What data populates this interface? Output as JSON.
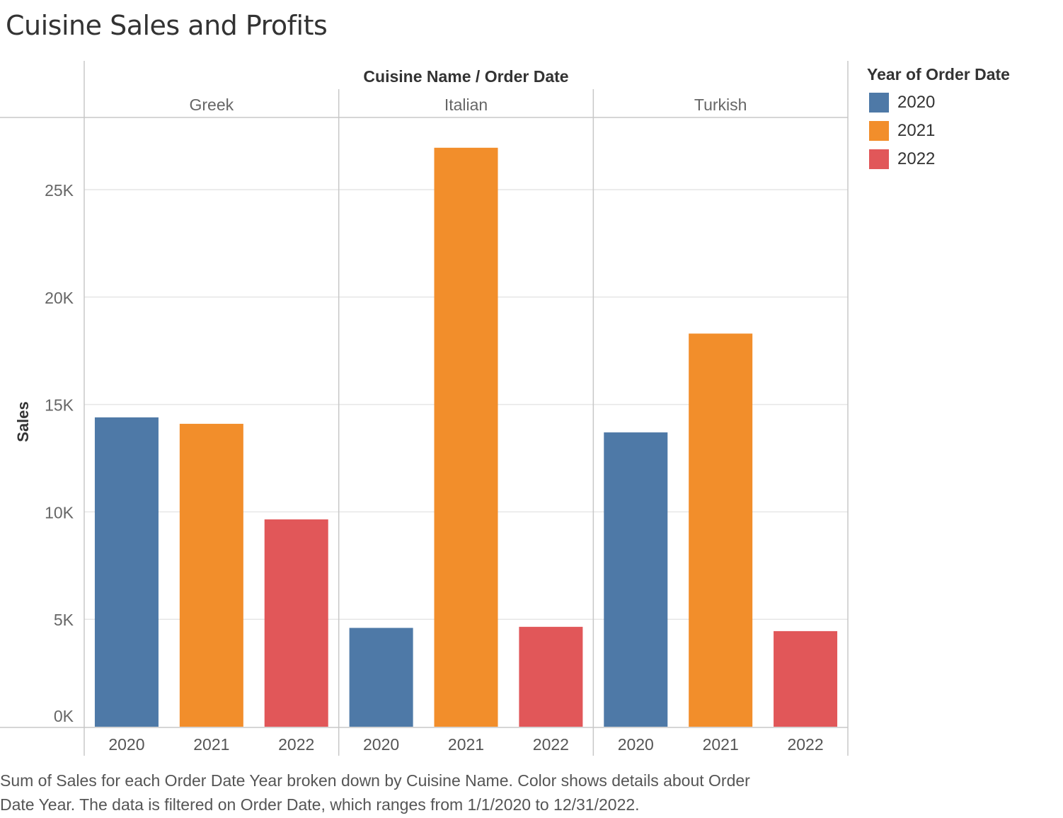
{
  "title": "Cuisine Sales and Profits",
  "caption_line1": "Sum of Sales for each Order Date Year broken down by Cuisine Name.  Color shows details about Order",
  "caption_line2": "Date Year. The data is filtered on Order Date, which ranges from 1/1/2020 to 12/31/2022.",
  "legend": {
    "title": "Year of Order Date",
    "items": [
      {
        "label": "2020",
        "color": "#4e79a7"
      },
      {
        "label": "2021",
        "color": "#f28e2b"
      },
      {
        "label": "2022",
        "color": "#e15759"
      }
    ]
  },
  "chart_data": {
    "type": "bar",
    "title": "Cuisine Sales and Profits",
    "header": "Cuisine Name  /  Order Date",
    "ylabel": "Sales",
    "ylim": [
      0,
      28000
    ],
    "yticks": [
      0,
      5000,
      10000,
      15000,
      20000,
      25000
    ],
    "ytick_labels": [
      "0K",
      "5K",
      "10K",
      "15K",
      "20K",
      "25K"
    ],
    "grid": true,
    "legend_position": "right",
    "groups": [
      {
        "name": "Greek",
        "years": [
          "2020",
          "2021",
          "2022"
        ],
        "values": [
          14400,
          14100,
          9650
        ]
      },
      {
        "name": "Italian",
        "years": [
          "2020",
          "2021",
          "2022"
        ],
        "values": [
          4600,
          26950,
          4650
        ]
      },
      {
        "name": "Turkish",
        "years": [
          "2020",
          "2021",
          "2022"
        ],
        "values": [
          13700,
          18300,
          4450
        ]
      }
    ],
    "colors": {
      "2020": "#4e79a7",
      "2021": "#f28e2b",
      "2022": "#e15759"
    }
  }
}
